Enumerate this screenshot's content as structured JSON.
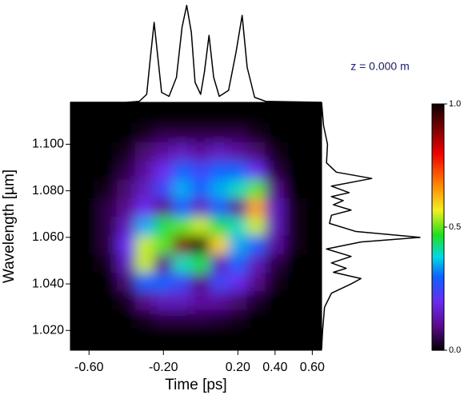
{
  "chart_data": {
    "type": "heatmap",
    "annotation": "z = 0.000 m",
    "xlabel": "Time [ps]",
    "ylabel": "Wavelength [µm]",
    "xlim": [
      -0.7,
      0.65
    ],
    "ylim": [
      1.0115,
      1.118
    ],
    "xticks": [
      {
        "value": -0.6,
        "label": "-0.60"
      },
      {
        "value": -0.2,
        "label": "-0.20"
      },
      {
        "value": 0.2,
        "label": "0.20"
      },
      {
        "value": 0.4,
        "label": "0.40"
      },
      {
        "value": 0.6,
        "label": "0.60"
      }
    ],
    "yticks": [
      {
        "value": 1.02,
        "label": "1.020"
      },
      {
        "value": 1.04,
        "label": "1.040"
      },
      {
        "value": 1.06,
        "label": "1.060"
      },
      {
        "value": 1.08,
        "label": "1.080"
      },
      {
        "value": 1.1,
        "label": "1.100"
      }
    ],
    "x": [
      -0.6,
      -0.5,
      -0.4,
      -0.3,
      -0.2,
      -0.1,
      0.0,
      0.1,
      0.2,
      0.3,
      0.4,
      0.5,
      0.6
    ],
    "y": [
      1.025,
      1.033,
      1.041,
      1.049,
      1.057,
      1.065,
      1.073,
      1.081,
      1.089,
      1.097,
      1.105
    ],
    "z": [
      [
        0,
        0,
        0,
        0.02,
        0.05,
        0.05,
        0.05,
        0.04,
        0.02,
        0,
        0,
        0,
        0
      ],
      [
        0,
        0,
        0.02,
        0.1,
        0.15,
        0.15,
        0.12,
        0.12,
        0.08,
        0.03,
        0,
        0,
        0
      ],
      [
        0,
        0,
        0.08,
        0.3,
        0.3,
        0.25,
        0.1,
        0.25,
        0.2,
        0.1,
        0.02,
        0,
        0
      ],
      [
        0,
        0.02,
        0.15,
        0.55,
        0.1,
        0.4,
        0.45,
        0.15,
        0.3,
        0.15,
        0.05,
        0,
        0
      ],
      [
        0,
        0.05,
        0.2,
        0.55,
        0.5,
        0.9,
        1.0,
        0.6,
        0.35,
        0.3,
        0.12,
        0.02,
        0
      ],
      [
        0,
        0.05,
        0.15,
        0.35,
        0.45,
        0.5,
        0.55,
        0.45,
        0.4,
        0.55,
        0.15,
        0.02,
        0
      ],
      [
        0,
        0.05,
        0.1,
        0.2,
        0.1,
        0.3,
        0.15,
        0.3,
        0.1,
        0.65,
        0.15,
        0.02,
        0
      ],
      [
        0,
        0.02,
        0.08,
        0.15,
        0.25,
        0.35,
        0.3,
        0.35,
        0.4,
        0.5,
        0.1,
        0,
        0
      ],
      [
        0,
        0,
        0.05,
        0.12,
        0.2,
        0.3,
        0.25,
        0.3,
        0.3,
        0.2,
        0.05,
        0,
        0
      ],
      [
        0,
        0,
        0.02,
        0.08,
        0.12,
        0.15,
        0.12,
        0.15,
        0.12,
        0.08,
        0.02,
        0,
        0
      ],
      [
        0,
        0,
        0,
        0.02,
        0.05,
        0.05,
        0.05,
        0.05,
        0.05,
        0.02,
        0,
        0,
        0
      ]
    ],
    "colormap": [
      {
        "value": 0.0,
        "color": "#000000"
      },
      {
        "value": 0.1,
        "color": "#5a0a8c"
      },
      {
        "value": 0.2,
        "color": "#6a2cf0"
      },
      {
        "value": 0.3,
        "color": "#1060ff"
      },
      {
        "value": 0.38,
        "color": "#00d8e8"
      },
      {
        "value": 0.47,
        "color": "#20e020"
      },
      {
        "value": 0.57,
        "color": "#f0f020"
      },
      {
        "value": 0.68,
        "color": "#ff8000"
      },
      {
        "value": 0.8,
        "color": "#f00000"
      },
      {
        "value": 1.0,
        "color": "#100000"
      }
    ],
    "colorbar_ticks": [
      {
        "value": 0.0,
        "label": "0.0"
      },
      {
        "value": 0.5,
        "label": "0.5"
      },
      {
        "value": 1.0,
        "label": "1.0"
      }
    ],
    "time_profile": {
      "x": [
        -0.7,
        -0.4,
        -0.33,
        -0.29,
        -0.27,
        -0.25,
        -0.23,
        -0.21,
        -0.17,
        -0.13,
        -0.1,
        -0.075,
        -0.05,
        -0.03,
        0.0,
        0.02,
        0.045,
        0.07,
        0.1,
        0.15,
        0.19,
        0.223,
        0.25,
        0.29,
        0.35,
        0.65
      ],
      "values": [
        0,
        0,
        0.01,
        0.08,
        0.45,
        0.8,
        0.45,
        0.1,
        0.06,
        0.25,
        0.75,
        0.97,
        0.7,
        0.2,
        0.08,
        0.3,
        0.67,
        0.25,
        0.06,
        0.12,
        0.5,
        0.87,
        0.35,
        0.05,
        0.01,
        0
      ]
    },
    "spectrum_profile": {
      "y": [
        1.012,
        1.02,
        1.03,
        1.036,
        1.04,
        1.0423,
        1.045,
        1.0467,
        1.049,
        1.0518,
        1.055,
        1.058,
        1.06,
        1.0625,
        1.066,
        1.0695,
        1.0717,
        1.074,
        1.0758,
        1.0775,
        1.0792,
        1.082,
        1.0853,
        1.088,
        1.092,
        1.1,
        1.108,
        1.118
      ],
      "values": [
        0,
        0.01,
        0.03,
        0.1,
        0.3,
        0.4,
        0.12,
        0.25,
        0.1,
        0.3,
        0.05,
        0.4,
        1.0,
        0.35,
        0.08,
        0.1,
        0.3,
        0.12,
        0.22,
        0.1,
        0.28,
        0.1,
        0.51,
        0.15,
        0.05,
        0.06,
        0.02,
        0
      ]
    }
  }
}
